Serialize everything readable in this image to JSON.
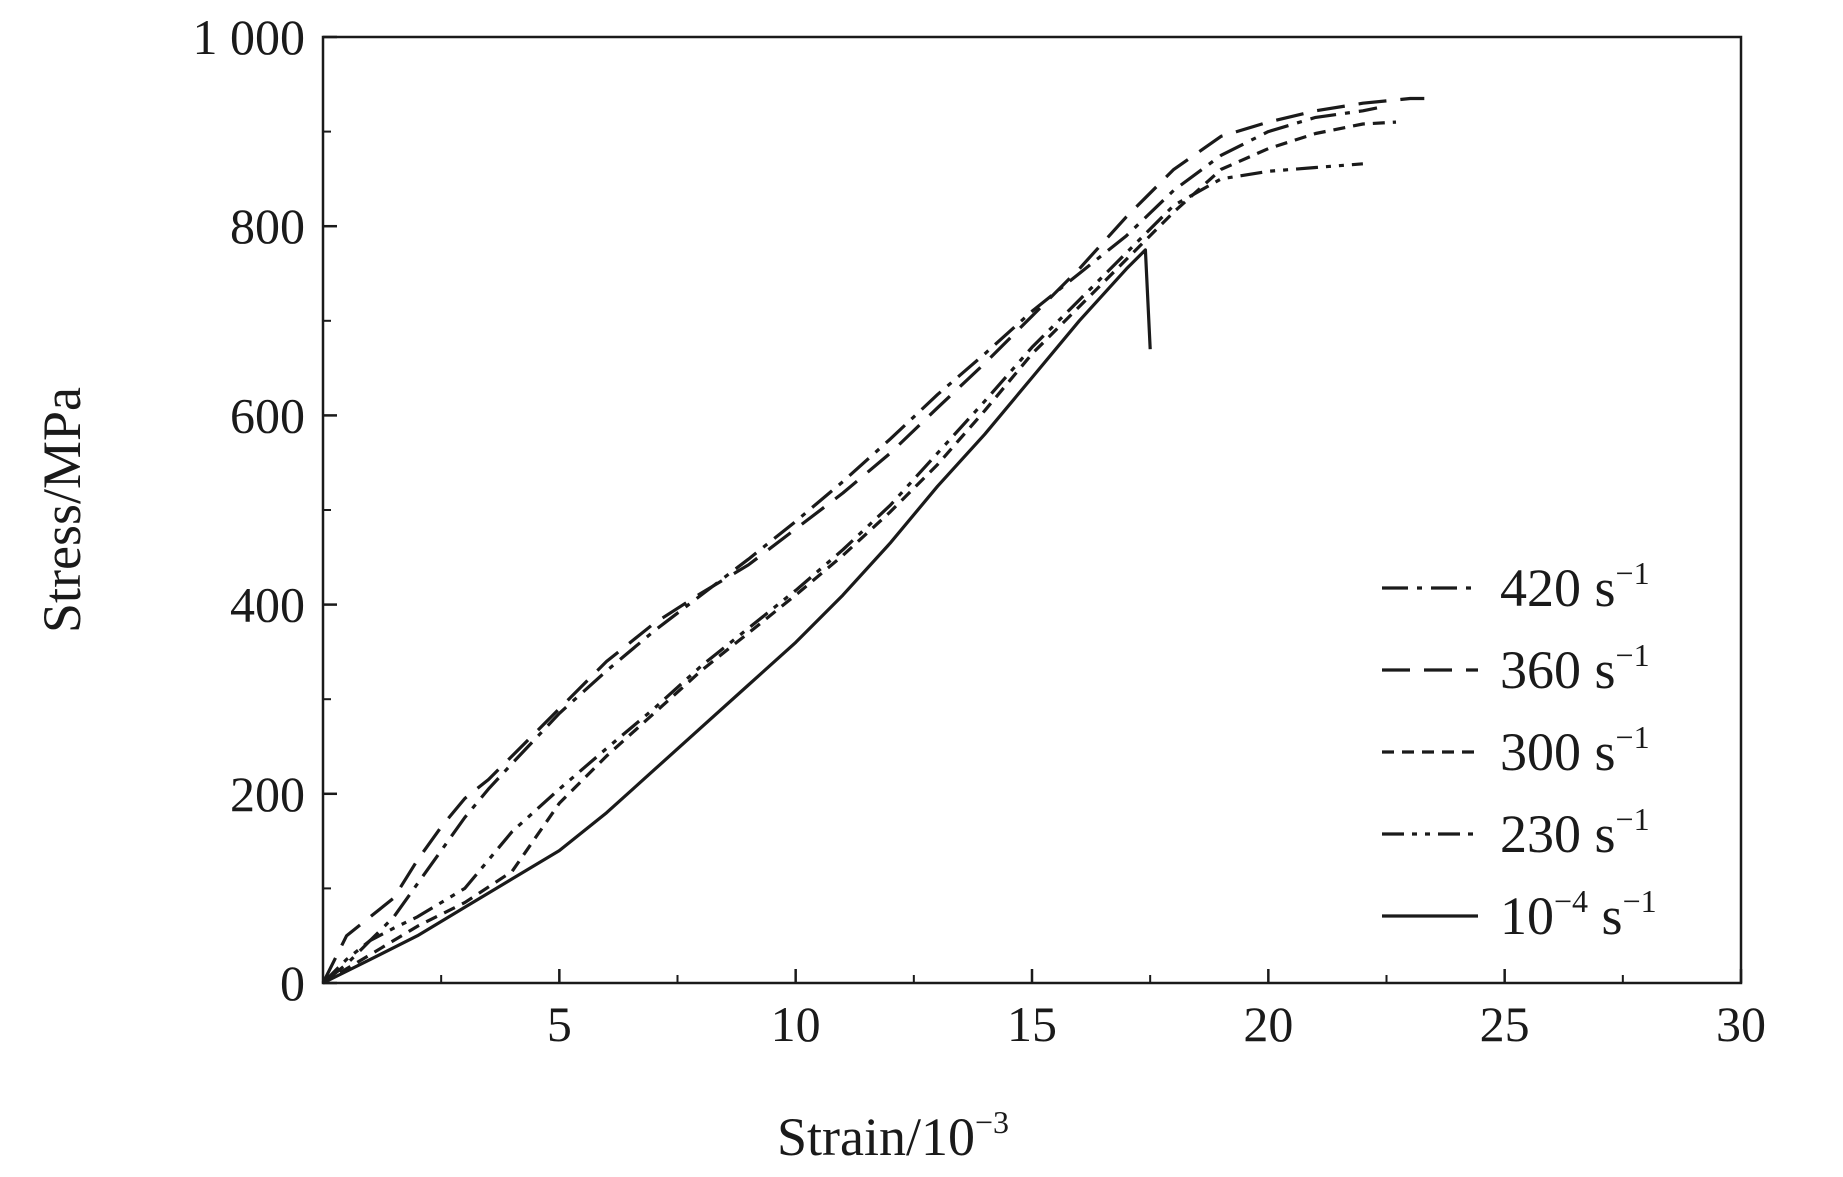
{
  "chart_data": {
    "type": "line",
    "xlabel": "Strain/10",
    "xlabel_sup": "−3",
    "ylabel": "Stress/MPa",
    "xlim": [
      0,
      30
    ],
    "ylim": [
      0,
      1000
    ],
    "x_ticks": [
      5,
      10,
      15,
      20,
      25,
      30
    ],
    "x_tick_labels": [
      "5",
      "10",
      "15",
      "20",
      "25",
      "30"
    ],
    "x_minor_ticks": [
      2.5,
      7.5,
      12.5,
      17.5,
      22.5,
      27.5
    ],
    "y_ticks": [
      0,
      200,
      400,
      600,
      800,
      1000
    ],
    "y_tick_labels": [
      "0",
      "200",
      "400",
      "600",
      "800",
      "1 000"
    ],
    "y_minor_ticks": [
      100,
      300,
      500,
      700,
      900
    ],
    "grid": false,
    "legend_position": "bottom-right",
    "series": [
      {
        "name": "420 s",
        "name_sup": "−1",
        "dash": "dashdot",
        "points": [
          [
            0,
            0
          ],
          [
            0.5,
            20
          ],
          [
            1,
            45
          ],
          [
            1.5,
            70
          ],
          [
            2,
            105
          ],
          [
            2.5,
            140
          ],
          [
            3,
            175
          ],
          [
            3.5,
            205
          ],
          [
            4,
            232
          ],
          [
            5,
            285
          ],
          [
            6,
            330
          ],
          [
            7,
            372
          ],
          [
            8,
            410
          ],
          [
            9,
            448
          ],
          [
            10,
            488
          ],
          [
            11,
            530
          ],
          [
            12,
            575
          ],
          [
            13,
            622
          ],
          [
            14,
            665
          ],
          [
            15,
            710
          ],
          [
            16,
            750
          ],
          [
            17,
            790
          ],
          [
            18,
            838
          ],
          [
            19,
            875
          ],
          [
            20,
            900
          ],
          [
            21,
            915
          ],
          [
            22,
            922
          ],
          [
            22.3,
            925
          ]
        ]
      },
      {
        "name": "360 s",
        "name_sup": "−1",
        "dash": "dash",
        "points": [
          [
            0,
            0
          ],
          [
            0.5,
            50
          ],
          [
            1,
            70
          ],
          [
            1.5,
            90
          ],
          [
            2,
            130
          ],
          [
            2.5,
            165
          ],
          [
            3,
            195
          ],
          [
            3.5,
            215
          ],
          [
            4,
            240
          ],
          [
            5,
            290
          ],
          [
            6,
            340
          ],
          [
            7,
            380
          ],
          [
            8,
            412
          ],
          [
            9,
            442
          ],
          [
            10,
            480
          ],
          [
            11,
            518
          ],
          [
            12,
            560
          ],
          [
            13,
            608
          ],
          [
            14,
            655
          ],
          [
            15,
            705
          ],
          [
            16,
            755
          ],
          [
            17,
            810
          ],
          [
            18,
            860
          ],
          [
            19,
            895
          ],
          [
            20,
            910
          ],
          [
            21,
            922
          ],
          [
            22,
            930
          ],
          [
            23,
            935
          ],
          [
            23.3,
            935
          ]
        ]
      },
      {
        "name": "300 s",
        "name_sup": "−1",
        "dash": "shortdash",
        "points": [
          [
            0,
            0
          ],
          [
            0.5,
            15
          ],
          [
            1,
            30
          ],
          [
            1.5,
            45
          ],
          [
            2,
            60
          ],
          [
            3,
            85
          ],
          [
            4,
            118
          ],
          [
            5,
            190
          ],
          [
            6,
            240
          ],
          [
            7,
            285
          ],
          [
            8,
            330
          ],
          [
            9,
            370
          ],
          [
            10,
            410
          ],
          [
            11,
            452
          ],
          [
            12,
            498
          ],
          [
            13,
            548
          ],
          [
            14,
            605
          ],
          [
            15,
            665
          ],
          [
            16,
            715
          ],
          [
            17,
            765
          ],
          [
            18,
            815
          ],
          [
            19,
            860
          ],
          [
            20,
            882
          ],
          [
            21,
            898
          ],
          [
            22,
            908
          ],
          [
            22.7,
            910
          ]
        ]
      },
      {
        "name": "230 s",
        "name_sup": "−1",
        "dash": "dashdotdot",
        "points": [
          [
            0,
            0
          ],
          [
            0.5,
            25
          ],
          [
            1,
            45
          ],
          [
            1.5,
            58
          ],
          [
            2,
            70
          ],
          [
            3,
            100
          ],
          [
            4,
            160
          ],
          [
            5,
            205
          ],
          [
            6,
            248
          ],
          [
            7,
            290
          ],
          [
            8,
            335
          ],
          [
            9,
            375
          ],
          [
            10,
            415
          ],
          [
            11,
            458
          ],
          [
            12,
            505
          ],
          [
            13,
            560
          ],
          [
            14,
            615
          ],
          [
            15,
            672
          ],
          [
            16,
            722
          ],
          [
            17,
            772
          ],
          [
            18,
            822
          ],
          [
            19,
            850
          ],
          [
            20,
            858
          ],
          [
            21,
            862
          ],
          [
            22,
            866
          ]
        ]
      },
      {
        "name": "10",
        "name_sup": "−4",
        "name_suffix": " s",
        "name_suffix_sup": "−1",
        "dash": "solid",
        "points": [
          [
            0,
            0
          ],
          [
            1,
            25
          ],
          [
            2,
            50
          ],
          [
            3,
            80
          ],
          [
            4,
            110
          ],
          [
            5,
            140
          ],
          [
            6,
            180
          ],
          [
            7,
            225
          ],
          [
            8,
            270
          ],
          [
            9,
            315
          ],
          [
            10,
            360
          ],
          [
            11,
            410
          ],
          [
            12,
            465
          ],
          [
            13,
            525
          ],
          [
            14,
            580
          ],
          [
            15,
            640
          ],
          [
            16,
            700
          ],
          [
            17,
            755
          ],
          [
            17.4,
            775
          ],
          [
            17.5,
            670
          ]
        ]
      }
    ]
  }
}
